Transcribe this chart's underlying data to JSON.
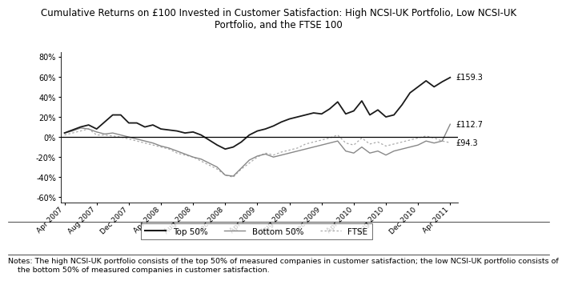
{
  "title": "Cumulative Returns on £100 Invested in Customer Satisfaction: High NCSI-UK Portfolio, Low NCSI-UK\nPortfolio, and the FTSE 100",
  "title_fontsize": 8.5,
  "note": "Notes: The high NCSI-UK portfolio consists of the top 50% of measured companies in customer satisfaction; the low NCSI-UK portfolio consists of\n    the bottom 50% of measured companies in customer satisfaction.",
  "note_fontsize": 6.8,
  "ylim": [
    -0.65,
    0.85
  ],
  "yticks": [
    -0.6,
    -0.4,
    -0.2,
    0.0,
    0.2,
    0.4,
    0.6,
    0.8
  ],
  "xtick_labels": [
    "Apr 2007",
    "Aug 2007",
    "Dec 2007",
    "Apr 2008",
    "Aug 2008",
    "Dec 2008",
    "Apr 2009",
    "Aug 2009",
    "Dec 2009",
    "Apr 2010",
    "Aug 2010",
    "Dec 2010",
    "Apr 2011"
  ],
  "end_labels": [
    "£159.3",
    "£112.7",
    "£94.3"
  ],
  "legend_labels": [
    "Top 50%",
    "Bottom 50%",
    "FTSE"
  ],
  "top50_color": "#1a1a1a",
  "bottom50_color": "#888888",
  "ftse_color": "#aaaaaa",
  "top50_y": [
    0.04,
    0.07,
    0.1,
    0.12,
    0.08,
    0.15,
    0.22,
    0.22,
    0.14,
    0.14,
    0.1,
    0.12,
    0.08,
    0.07,
    0.06,
    0.04,
    0.05,
    0.02,
    -0.03,
    -0.08,
    -0.12,
    -0.1,
    -0.05,
    0.02,
    0.06,
    0.08,
    0.11,
    0.15,
    0.18,
    0.2,
    0.22,
    0.24,
    0.23,
    0.28,
    0.35,
    0.23,
    0.26,
    0.36,
    0.22,
    0.27,
    0.2,
    0.22,
    0.32,
    0.44,
    0.5,
    0.56,
    0.5,
    0.55,
    0.593
  ],
  "bottom50_y": [
    0.04,
    0.06,
    0.09,
    0.08,
    0.05,
    0.03,
    0.04,
    0.02,
    0.0,
    -0.02,
    -0.04,
    -0.06,
    -0.09,
    -0.11,
    -0.14,
    -0.17,
    -0.2,
    -0.22,
    -0.26,
    -0.3,
    -0.38,
    -0.39,
    -0.31,
    -0.23,
    -0.19,
    -0.17,
    -0.2,
    -0.18,
    -0.16,
    -0.14,
    -0.12,
    -0.1,
    -0.08,
    -0.06,
    -0.04,
    -0.14,
    -0.16,
    -0.1,
    -0.16,
    -0.14,
    -0.18,
    -0.14,
    -0.12,
    -0.1,
    -0.08,
    -0.04,
    -0.06,
    -0.04,
    0.127
  ],
  "ftse_y": [
    0.02,
    0.04,
    0.06,
    0.08,
    0.02,
    0.02,
    0.01,
    0.0,
    -0.02,
    -0.04,
    -0.06,
    -0.08,
    -0.1,
    -0.12,
    -0.16,
    -0.18,
    -0.2,
    -0.24,
    -0.28,
    -0.32,
    -0.38,
    -0.4,
    -0.32,
    -0.26,
    -0.2,
    -0.16,
    -0.18,
    -0.15,
    -0.13,
    -0.11,
    -0.07,
    -0.05,
    -0.03,
    -0.01,
    0.02,
    -0.06,
    -0.08,
    -0.01,
    -0.07,
    -0.05,
    -0.09,
    -0.07,
    -0.05,
    -0.03,
    -0.01,
    0.01,
    -0.01,
    -0.04,
    -0.057
  ]
}
